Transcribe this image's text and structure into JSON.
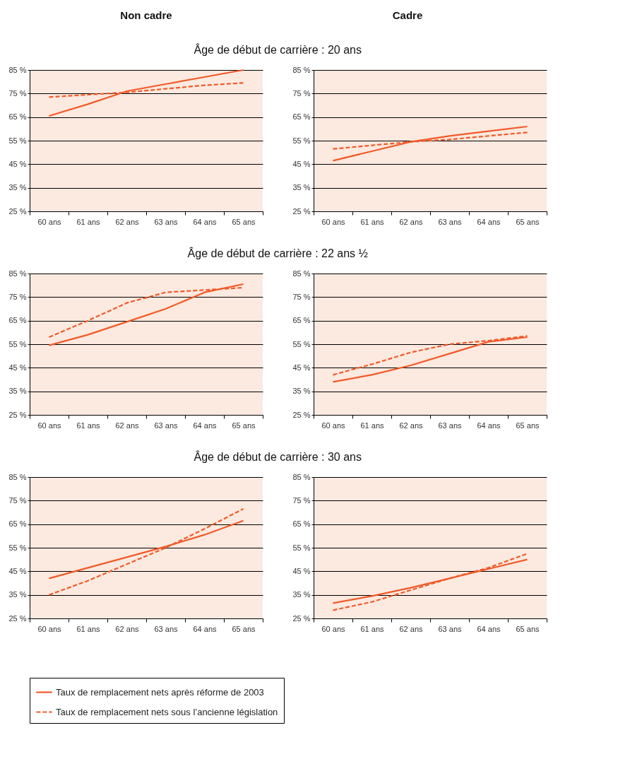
{
  "chart_data": [
    {
      "type": "line",
      "title": "Âge de début de carrière : 20 ans",
      "subtitle": "Non cadre",
      "categories": [
        "60 ans",
        "61 ans",
        "62 ans",
        "63 ans",
        "64 ans",
        "65 ans"
      ],
      "ylim": [
        25,
        85
      ],
      "yticks": [
        {
          "value": 25,
          "label": "25 %"
        },
        {
          "value": 35,
          "label": "35 %"
        },
        {
          "value": 45,
          "label": "45 %"
        },
        {
          "value": 55,
          "label": "55 %"
        },
        {
          "value": 65,
          "label": "65 %"
        },
        {
          "value": 75,
          "label": "75 %"
        },
        {
          "value": 85,
          "label": "85 %"
        }
      ],
      "grid": "y",
      "legend": "bottom",
      "series": [
        {
          "name": "Taux de remplacement nets après réforme de 2003",
          "color": "#f15a29",
          "line_style": "solid",
          "values": [
            65.5,
            70.5,
            76,
            79,
            82,
            85
          ]
        },
        {
          "name": "Taux de remplacement nets sous l’ancienne législation",
          "color": "#f15a29",
          "line_style": "dashed",
          "values": [
            73.5,
            74.5,
            75.5,
            77,
            78.5,
            79.5
          ]
        }
      ]
    },
    {
      "type": "line",
      "subtitle": "Cadre",
      "categories": [
        "60 ans",
        "61 ans",
        "62 ans",
        "63 ans",
        "64 ans",
        "65 ans"
      ],
      "ylim": [
        25,
        85
      ],
      "yticks": [
        {
          "value": 25,
          "label": "25 %"
        },
        {
          "value": 35,
          "label": "35 %"
        },
        {
          "value": 45,
          "label": "45 %"
        },
        {
          "value": 55,
          "label": "55 %"
        },
        {
          "value": 65,
          "label": "65 %"
        },
        {
          "value": 75,
          "label": "75 %"
        },
        {
          "value": 85,
          "label": "85 %"
        }
      ],
      "grid": "y",
      "legend": "bottom",
      "series": [
        {
          "name": "Taux de remplacement nets après réforme de 2003",
          "color": "#f15a29",
          "line_style": "solid",
          "values": [
            46.5,
            50.5,
            54.5,
            57,
            59,
            61
          ]
        },
        {
          "name": "Taux de remplacement nets sous l’ancienne législation",
          "color": "#f15a29",
          "line_style": "dashed",
          "values": [
            51.5,
            53,
            54.5,
            55.5,
            57,
            58.5
          ]
        }
      ]
    },
    {
      "type": "line",
      "title": "Âge de début de carrière : 22 ans ½",
      "categories": [
        "60 ans",
        "61 ans",
        "62 ans",
        "63 ans",
        "64 ans",
        "65 ans"
      ],
      "ylim": [
        25,
        85
      ],
      "yticks": [
        {
          "value": 25,
          "label": "25 %"
        },
        {
          "value": 35,
          "label": "35 %"
        },
        {
          "value": 45,
          "label": "45 %"
        },
        {
          "value": 55,
          "label": "55 %"
        },
        {
          "value": 65,
          "label": "65 %"
        },
        {
          "value": 75,
          "label": "75 %"
        },
        {
          "value": 85,
          "label": "85 %"
        }
      ],
      "grid": "y",
      "legend": "bottom",
      "series": [
        {
          "name": "Taux de remplacement nets après réforme de 2003",
          "color": "#f15a29",
          "line_style": "solid",
          "values": [
            54.5,
            59,
            64.5,
            70,
            77,
            80.5
          ]
        },
        {
          "name": "Taux de remplacement nets sous l’ancienne législation",
          "color": "#f15a29",
          "line_style": "dashed",
          "values": [
            58,
            65,
            72.5,
            77,
            78,
            79
          ]
        }
      ]
    },
    {
      "type": "line",
      "categories": [
        "60 ans",
        "61 ans",
        "62 ans",
        "63 ans",
        "64 ans",
        "65 ans"
      ],
      "ylim": [
        25,
        85
      ],
      "yticks": [
        {
          "value": 25,
          "label": "25 %"
        },
        {
          "value": 35,
          "label": "35 %"
        },
        {
          "value": 45,
          "label": "45 %"
        },
        {
          "value": 55,
          "label": "55 %"
        },
        {
          "value": 65,
          "label": "65 %"
        },
        {
          "value": 75,
          "label": "75 %"
        },
        {
          "value": 85,
          "label": "85 %"
        }
      ],
      "grid": "y",
      "legend": "bottom",
      "series": [
        {
          "name": "Taux de remplacement nets après réforme de 2003",
          "color": "#f15a29",
          "line_style": "solid",
          "values": [
            39,
            42,
            46,
            51,
            56,
            58
          ]
        },
        {
          "name": "Taux de remplacement nets sous l’ancienne législation",
          "color": "#f15a29",
          "line_style": "dashed",
          "values": [
            42,
            46.5,
            51.5,
            55,
            56.5,
            58.5
          ]
        }
      ]
    },
    {
      "type": "line",
      "title": "Âge de début de carrière : 30 ans",
      "categories": [
        "60 ans",
        "61 ans",
        "62 ans",
        "63 ans",
        "64 ans",
        "65 ans"
      ],
      "ylim": [
        25,
        85
      ],
      "yticks": [
        {
          "value": 25,
          "label": "25 %"
        },
        {
          "value": 35,
          "label": "35 %"
        },
        {
          "value": 45,
          "label": "45 %"
        },
        {
          "value": 55,
          "label": "55 %"
        },
        {
          "value": 65,
          "label": "65 %"
        },
        {
          "value": 75,
          "label": "75 %"
        },
        {
          "value": 85,
          "label": "85 %"
        }
      ],
      "grid": "y",
      "legend": "bottom",
      "series": [
        {
          "name": "Taux de remplacement nets après réforme de 2003",
          "color": "#f15a29",
          "line_style": "solid",
          "values": [
            42,
            46.5,
            51,
            55.5,
            60.5,
            66.5
          ]
        },
        {
          "name": "Taux de remplacement nets sous l’ancienne législation",
          "color": "#f15a29",
          "line_style": "dashed",
          "values": [
            35,
            41,
            48,
            55,
            63,
            71.5
          ]
        }
      ]
    },
    {
      "type": "line",
      "categories": [
        "60 ans",
        "61 ans",
        "62 ans",
        "63 ans",
        "64 ans",
        "65 ans"
      ],
      "ylim": [
        25,
        85
      ],
      "yticks": [
        {
          "value": 25,
          "label": "25 %"
        },
        {
          "value": 35,
          "label": "35 %"
        },
        {
          "value": 45,
          "label": "45 %"
        },
        {
          "value": 55,
          "label": "55 %"
        },
        {
          "value": 65,
          "label": "65 %"
        },
        {
          "value": 75,
          "label": "75 %"
        },
        {
          "value": 85,
          "label": "85 %"
        }
      ],
      "grid": "y",
      "legend": "bottom",
      "series": [
        {
          "name": "Taux de remplacement nets après réforme de 2003",
          "color": "#f15a29",
          "line_style": "solid",
          "values": [
            31.5,
            34.5,
            38,
            42,
            46,
            50
          ]
        },
        {
          "name": "Taux de remplacement nets sous l’ancienne législation",
          "color": "#f15a29",
          "line_style": "dashed",
          "values": [
            28.5,
            32,
            37,
            42,
            46.5,
            52.5
          ]
        }
      ]
    }
  ]
}
